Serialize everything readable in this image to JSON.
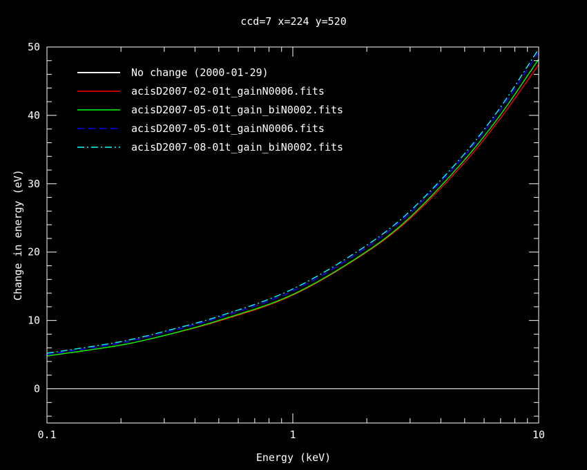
{
  "chart_data": {
    "type": "line",
    "title": "ccd=7 x=224 y=520",
    "xlabel": "Energy (keV)",
    "ylabel": "Change in energy (eV)",
    "x_scale": "log",
    "xlim": [
      0.1,
      10
    ],
    "ylim": [
      -5,
      50
    ],
    "x_ticks": [
      0.1,
      1,
      10
    ],
    "x_tick_labels": [
      "0.1",
      "1",
      "10"
    ],
    "y_ticks": [
      0,
      10,
      20,
      30,
      40,
      50
    ],
    "y_tick_labels": [
      "0",
      "10",
      "20",
      "30",
      "40",
      "50"
    ],
    "background": "#000000",
    "axis_color": "#ffffff",
    "legend_position": "top-left",
    "x": [
      0.1,
      0.2,
      0.3,
      0.5,
      1,
      2,
      3,
      5,
      7,
      10
    ],
    "series": [
      {
        "name": "No change (2000-01-29)",
        "color": "#ffffff",
        "dash": "solid",
        "values": [
          0,
          0,
          0,
          0,
          0,
          0,
          0,
          0,
          0,
          0
        ]
      },
      {
        "name": "acisD2007-02-01t_gainN0006.fits",
        "color": "#ff0000",
        "dash": "solid",
        "values": [
          4.8,
          6.4,
          7.8,
          9.9,
          13.7,
          20.0,
          24.9,
          33.1,
          39.6,
          47.4
        ]
      },
      {
        "name": "acisD2007-05-01t_gain_biN0002.fits",
        "color": "#00ff00",
        "dash": "solid",
        "values": [
          4.8,
          6.4,
          7.8,
          10.0,
          13.8,
          20.1,
          25.1,
          33.5,
          40.1,
          48.2
        ]
      },
      {
        "name": "acisD2007-05-01t_gainN0006.fits",
        "color": "#0000ff",
        "dash": "dash",
        "values": [
          5.0,
          6.7,
          8.2,
          10.4,
          14.3,
          20.7,
          25.7,
          34.1,
          40.8,
          49.2
        ]
      },
      {
        "name": "acisD2007-08-01t_gain_biN0002.fits",
        "color": "#00ffff",
        "dash": "dashdot",
        "values": [
          5.2,
          6.9,
          8.4,
          10.6,
          14.6,
          21.0,
          26.0,
          34.4,
          41.2,
          49.7
        ]
      }
    ]
  }
}
